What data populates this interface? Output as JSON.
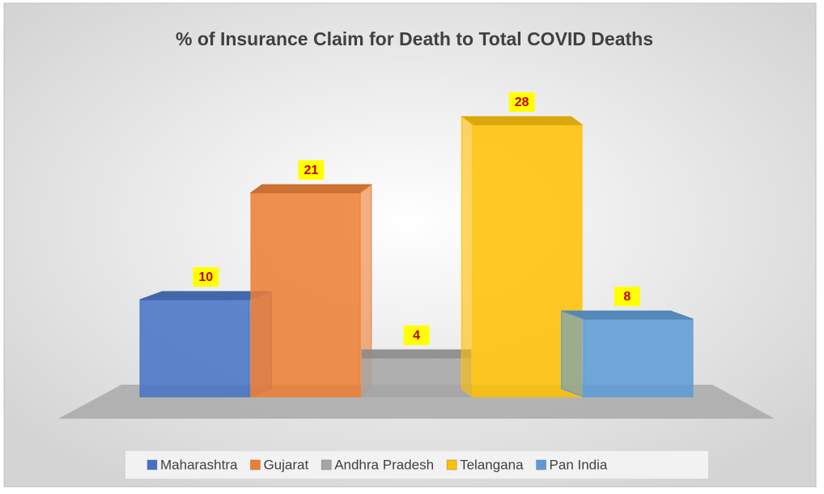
{
  "chart_data": {
    "type": "bar3d",
    "title": "% of Insurance Claim for Death to Total COVID Deaths",
    "series": [
      {
        "name": "Maharashtra",
        "color": "#4472c4",
        "values": [
          10
        ]
      },
      {
        "name": "Gujarat",
        "color": "#ed7d31",
        "values": [
          21
        ]
      },
      {
        "name": "Andhra Pradesh",
        "color": "#a5a5a5",
        "values": [
          4
        ]
      },
      {
        "name": "Telangana",
        "color": "#ffc000",
        "values": [
          28
        ]
      },
      {
        "name": "Pan India",
        "color": "#5b9bd5",
        "values": [
          8
        ]
      }
    ],
    "legend": "bottom"
  }
}
